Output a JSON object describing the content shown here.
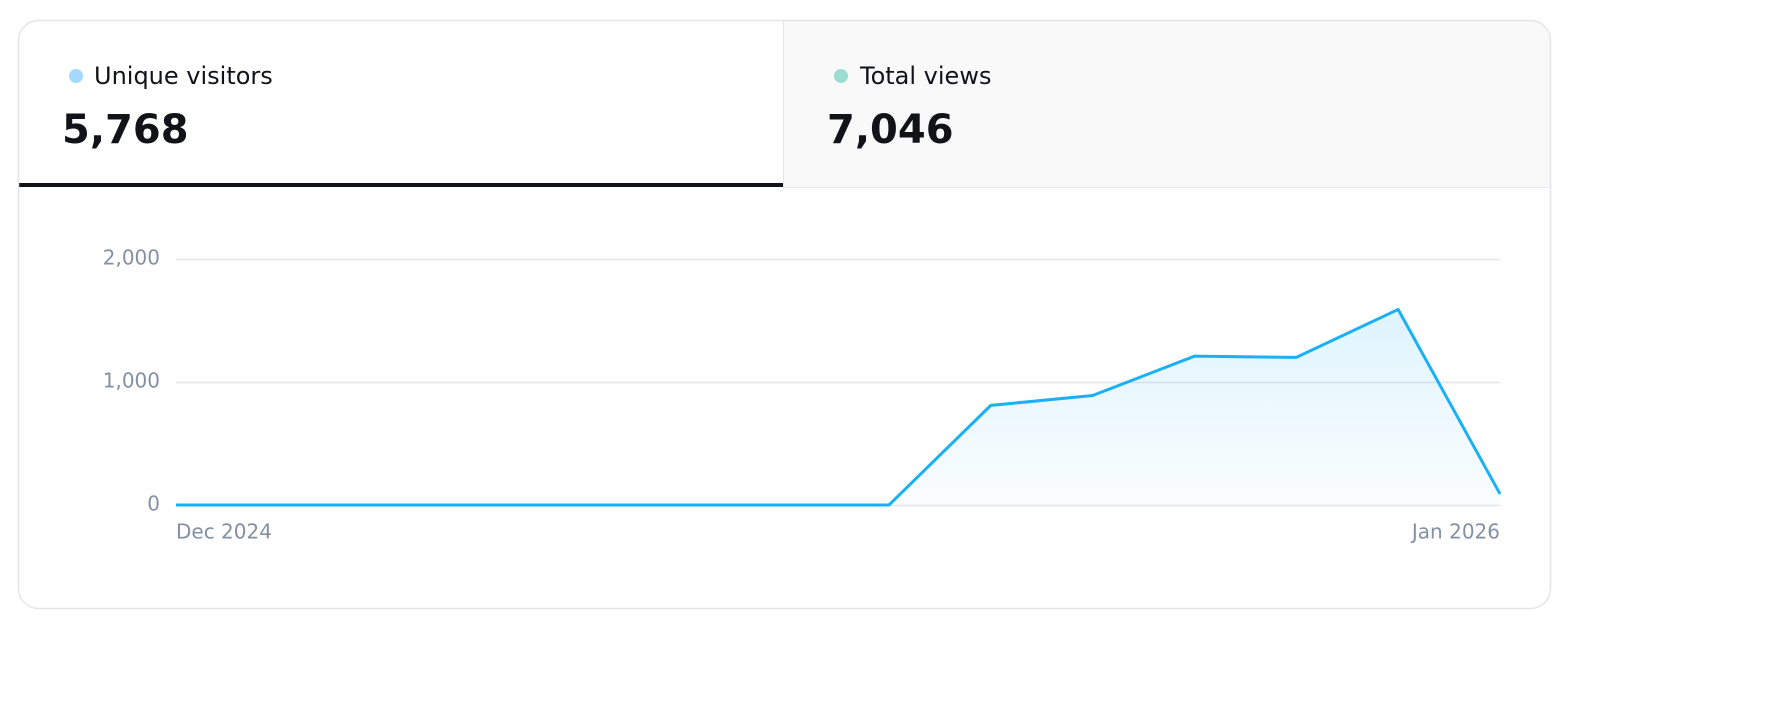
{
  "tabs": [
    {
      "label": "Unique visitors",
      "value": "5,768",
      "color": "#a3d9fb"
    },
    {
      "label": "Total views",
      "value": "7,046",
      "color": "#9ddcd0"
    }
  ],
  "chart_data": {
    "type": "area",
    "categories": [
      "Dec 2024",
      null,
      null,
      null,
      null,
      null,
      null,
      null,
      null,
      null,
      null,
      null,
      null,
      "Jan 2026"
    ],
    "values": [
      0,
      0,
      0,
      0,
      0,
      0,
      0,
      0,
      810,
      890,
      1210,
      1200,
      1590,
      90
    ],
    "color": "#1ab0f5",
    "ylim": [
      0,
      2000
    ],
    "yticks": [
      0,
      {
        "value": 1000,
        "label": "1,000"
      },
      {
        "value": 2000,
        "label": "2,000"
      }
    ],
    "grid": true
  }
}
